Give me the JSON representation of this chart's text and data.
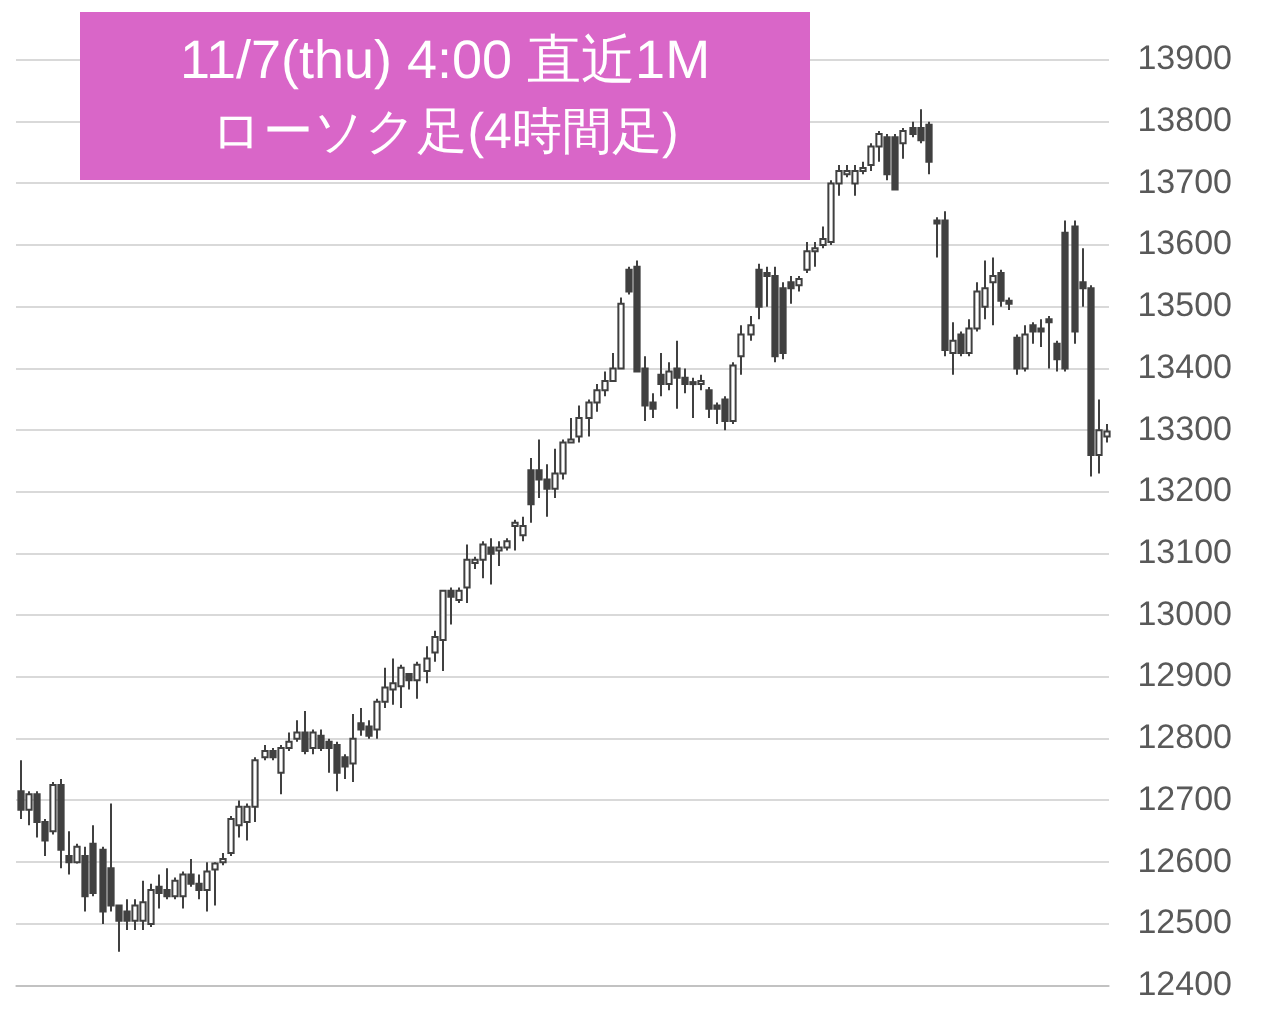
{
  "chart_data": {
    "type": "candlestick",
    "title": "11/7(thu) 4:00 直近1M",
    "subtitle": "ローソク足(4時間足)",
    "colors": [
      "#404040",
      "#ffffff",
      "#404040",
      "#404040",
      "#ffffff",
      "#404040",
      "#404040",
      "#ffffff",
      "#404040",
      "#404040",
      "#404040",
      "#404040",
      "#404040",
      "#404040",
      "#ffffff",
      "#ffffff",
      "#ffffff",
      "#404040",
      "#404040",
      "#ffffff",
      "#ffffff",
      "#404040",
      "#404040",
      "#ffffff",
      "#ffffff",
      "#ffffff",
      "#ffffff",
      "#ffffff",
      "#ffffff",
      "#ffffff",
      "#ffffff",
      "#404040",
      "#ffffff",
      "#ffffff",
      "#ffffff",
      "#404040",
      "#ffffff",
      "#404040",
      "#404040",
      "#404040",
      "#404040",
      "#ffffff",
      "#404040",
      "#404040",
      "#ffffff",
      "#ffffff",
      "#ffffff",
      "#ffffff",
      "#404040",
      "#ffffff",
      "#ffffff",
      "#ffffff",
      "#ffffff",
      "#404040",
      "#ffffff",
      "#ffffff",
      "#ffffff",
      "#ffffff",
      "#404040",
      "#ffffff",
      "#ffffff",
      "#ffffff",
      "#ffffff",
      "#404040",
      "#404040",
      "#404040",
      "#ffffff",
      "#ffffff",
      "#ffffff",
      "#ffffff",
      "#ffffff",
      "#ffffff",
      "#ffffff",
      "#ffffff",
      "#ffffff",
      "#404040",
      "#404040",
      "#404040",
      "#404040",
      "#404040",
      "#ffffff",
      "#404040",
      "#404040",
      "#404040",
      "#ffffff",
      "#404040",
      "#404040",
      "#404040",
      "#ffffff",
      "#ffffff",
      "#ffffff",
      "#404040",
      "#404040",
      "#404040",
      "#404040",
      "#404040",
      "#ffffff",
      "#ffffff",
      "#ffffff",
      "#ffffff",
      "#ffffff",
      "#ffffff",
      "#ffffff",
      "#ffffff",
      "#ffffff",
      "#ffffff",
      "#ffffff",
      "#404040",
      "#404040",
      "#ffffff",
      "#404040",
      "#404040",
      "#404040",
      "#404040",
      "#404040",
      "#ffffff",
      "#404040",
      "#ffffff",
      "#ffffff",
      "#ffffff",
      "#ffffff",
      "#404040",
      "#404040",
      "#404040",
      "#ffffff",
      "#404040",
      "#404040",
      "#404040",
      "#404040",
      "#404040",
      "#404040",
      "#404040",
      "#404040",
      "#ffffff",
      "#ffffff"
    ],
    "ylim": [
      12400,
      13900
    ],
    "yticks": [
      12400,
      12500,
      12600,
      12700,
      12800,
      12900,
      13000,
      13100,
      13200,
      13300,
      13400,
      13500,
      13600,
      13700,
      13800,
      13900
    ],
    "grid": "y",
    "tick_labels": "y",
    "legend": false,
    "ohlc": [
      [
        12715,
        12765,
        12670,
        12685
      ],
      [
        12685,
        12715,
        12660,
        12710
      ],
      [
        12710,
        12715,
        12640,
        12665
      ],
      [
        12665,
        12670,
        12610,
        12635
      ],
      [
        12650,
        12730,
        12645,
        12725
      ],
      [
        12725,
        12735,
        12590,
        12620
      ],
      [
        12610,
        12650,
        12580,
        12600
      ],
      [
        12600,
        12630,
        12598,
        12625
      ],
      [
        12610,
        12625,
        12520,
        12545
      ],
      [
        12630,
        12660,
        12545,
        12550
      ],
      [
        12620,
        12625,
        12500,
        12520
      ],
      [
        12590,
        12695,
        12520,
        12530
      ],
      [
        12530,
        12530,
        12455,
        12505
      ],
      [
        12520,
        12540,
        12490,
        12505
      ],
      [
        12505,
        12540,
        12490,
        12530
      ],
      [
        12505,
        12570,
        12490,
        12535
      ],
      [
        12500,
        12565,
        12495,
        12555
      ],
      [
        12560,
        12580,
        12525,
        12550
      ],
      [
        12555,
        12590,
        12540,
        12545
      ],
      [
        12545,
        12575,
        12540,
        12570
      ],
      [
        12545,
        12585,
        12525,
        12580
      ],
      [
        12580,
        12605,
        12560,
        12565
      ],
      [
        12565,
        12580,
        12540,
        12555
      ],
      [
        12555,
        12600,
        12520,
        12585
      ],
      [
        12588,
        12600,
        12530,
        12598
      ],
      [
        12600,
        12615,
        12595,
        12605
      ],
      [
        12615,
        12675,
        12610,
        12670
      ],
      [
        12660,
        12700,
        12640,
        12690
      ],
      [
        12665,
        12695,
        12635,
        12690
      ],
      [
        12690,
        12770,
        12665,
        12765
      ],
      [
        12770,
        12790,
        12765,
        12780
      ],
      [
        12780,
        12785,
        12765,
        12770
      ],
      [
        12745,
        12790,
        12710,
        12785
      ],
      [
        12785,
        12810,
        12780,
        12795
      ],
      [
        12800,
        12830,
        12795,
        12810
      ],
      [
        12810,
        12845,
        12775,
        12780
      ],
      [
        12785,
        12815,
        12775,
        12810
      ],
      [
        12805,
        12815,
        12780,
        12785
      ],
      [
        12795,
        12800,
        12745,
        12785
      ],
      [
        12790,
        12795,
        12715,
        12745
      ],
      [
        12770,
        12775,
        12735,
        12755
      ],
      [
        12760,
        12840,
        12730,
        12800
      ],
      [
        12825,
        12850,
        12805,
        12815
      ],
      [
        12820,
        12830,
        12800,
        12805
      ],
      [
        12815,
        12865,
        12800,
        12860
      ],
      [
        12860,
        12915,
        12850,
        12883
      ],
      [
        12880,
        12930,
        12855,
        12890
      ],
      [
        12885,
        12920,
        12850,
        12915
      ],
      [
        12905,
        12905,
        12880,
        12895
      ],
      [
        12895,
        12925,
        12865,
        12920
      ],
      [
        12910,
        12950,
        12890,
        12930
      ],
      [
        12940,
        12975,
        12925,
        12965
      ],
      [
        12960,
        13040,
        12910,
        13040
      ],
      [
        13040,
        13045,
        12985,
        13030
      ],
      [
        13025,
        13045,
        13020,
        13040
      ],
      [
        13045,
        13115,
        13020,
        13090
      ],
      [
        13085,
        13095,
        13075,
        13090
      ],
      [
        13090,
        13120,
        13060,
        13115
      ],
      [
        13110,
        13125,
        13050,
        13100
      ],
      [
        13105,
        13120,
        13080,
        13110
      ],
      [
        13110,
        13125,
        13105,
        13120
      ],
      [
        13145,
        13155,
        13105,
        13150
      ],
      [
        13130,
        13160,
        13120,
        13145
      ],
      [
        13235,
        13255,
        13150,
        13180
      ],
      [
        13235,
        13285,
        13190,
        13220
      ],
      [
        13220,
        13245,
        13160,
        13205
      ],
      [
        13205,
        13270,
        13190,
        13230
      ],
      [
        13230,
        13285,
        13220,
        13280
      ],
      [
        13280,
        13320,
        13280,
        13285
      ],
      [
        13290,
        13340,
        13280,
        13320
      ],
      [
        13320,
        13350,
        13290,
        13345
      ],
      [
        13345,
        13375,
        13330,
        13365
      ],
      [
        13365,
        13395,
        13355,
        13380
      ],
      [
        13380,
        13425,
        13380,
        13400
      ],
      [
        13400,
        13515,
        13400,
        13505
      ],
      [
        13560,
        13565,
        13520,
        13525
      ],
      [
        13565,
        13575,
        13395,
        13395
      ],
      [
        13400,
        13420,
        13315,
        13340
      ],
      [
        13345,
        13360,
        13320,
        13335
      ],
      [
        13390,
        13425,
        13355,
        13375
      ],
      [
        13375,
        13410,
        13365,
        13395
      ],
      [
        13400,
        13445,
        13335,
        13385
      ],
      [
        13385,
        13400,
        13360,
        13375
      ],
      [
        13378,
        13385,
        13320,
        13375
      ],
      [
        13375,
        13390,
        13365,
        13380
      ],
      [
        13365,
        13370,
        13320,
        13335
      ],
      [
        13340,
        13345,
        13310,
        13335
      ],
      [
        13350,
        13355,
        13300,
        13315
      ],
      [
        13315,
        13410,
        13310,
        13405
      ],
      [
        13420,
        13470,
        13390,
        13455
      ],
      [
        13455,
        13485,
        13445,
        13470
      ],
      [
        13560,
        13570,
        13480,
        13500
      ],
      [
        13555,
        13565,
        13500,
        13550
      ],
      [
        13550,
        13565,
        13410,
        13420
      ],
      [
        13530,
        13540,
        13415,
        13425
      ],
      [
        13540,
        13550,
        13505,
        13530
      ],
      [
        13535,
        13550,
        13525,
        13545
      ],
      [
        13560,
        13605,
        13555,
        13590
      ],
      [
        13590,
        13605,
        13565,
        13595
      ],
      [
        13600,
        13630,
        13595,
        13610
      ],
      [
        13605,
        13705,
        13600,
        13700
      ],
      [
        13700,
        13730,
        13680,
        13720
      ],
      [
        13715,
        13730,
        13710,
        13720
      ],
      [
        13700,
        13730,
        13680,
        13720
      ],
      [
        13720,
        13735,
        13715,
        13725
      ],
      [
        13730,
        13765,
        13720,
        13760
      ],
      [
        13760,
        13785,
        13735,
        13780
      ],
      [
        13775,
        13780,
        13705,
        13715
      ],
      [
        13775,
        13780,
        13690,
        13690
      ],
      [
        13765,
        13790,
        13740,
        13785
      ],
      [
        13790,
        13800,
        13775,
        13780
      ],
      [
        13790,
        13820,
        13765,
        13770
      ],
      [
        13795,
        13800,
        13715,
        13735
      ],
      [
        13640,
        13645,
        13580,
        13635
      ],
      [
        13640,
        13655,
        13420,
        13430
      ],
      [
        13425,
        13475,
        13390,
        13445
      ],
      [
        13455,
        13460,
        13420,
        13425
      ],
      [
        13425,
        13480,
        13420,
        13465
      ],
      [
        13465,
        13540,
        13460,
        13525
      ],
      [
        13500,
        13575,
        13480,
        13530
      ],
      [
        13540,
        13580,
        13470,
        13550
      ],
      [
        13555,
        13560,
        13500,
        13510
      ],
      [
        13510,
        13515,
        13495,
        13505
      ],
      [
        13450,
        13455,
        13390,
        13400
      ],
      [
        13400,
        13470,
        13395,
        13455
      ],
      [
        13470,
        13475,
        13440,
        13460
      ],
      [
        13465,
        13480,
        13435,
        13460
      ],
      [
        13480,
        13485,
        13400,
        13475
      ],
      [
        13440,
        13445,
        13395,
        13415
      ],
      [
        13620,
        13640,
        13395,
        13400
      ],
      [
        13630,
        13640,
        13440,
        13460
      ],
      [
        13540,
        13595,
        13500,
        13530
      ],
      [
        13530,
        13535,
        13225,
        13260
      ],
      [
        13260,
        13350,
        13230,
        13300
      ],
      [
        13290,
        13310,
        13280,
        13298
      ]
    ]
  }
}
